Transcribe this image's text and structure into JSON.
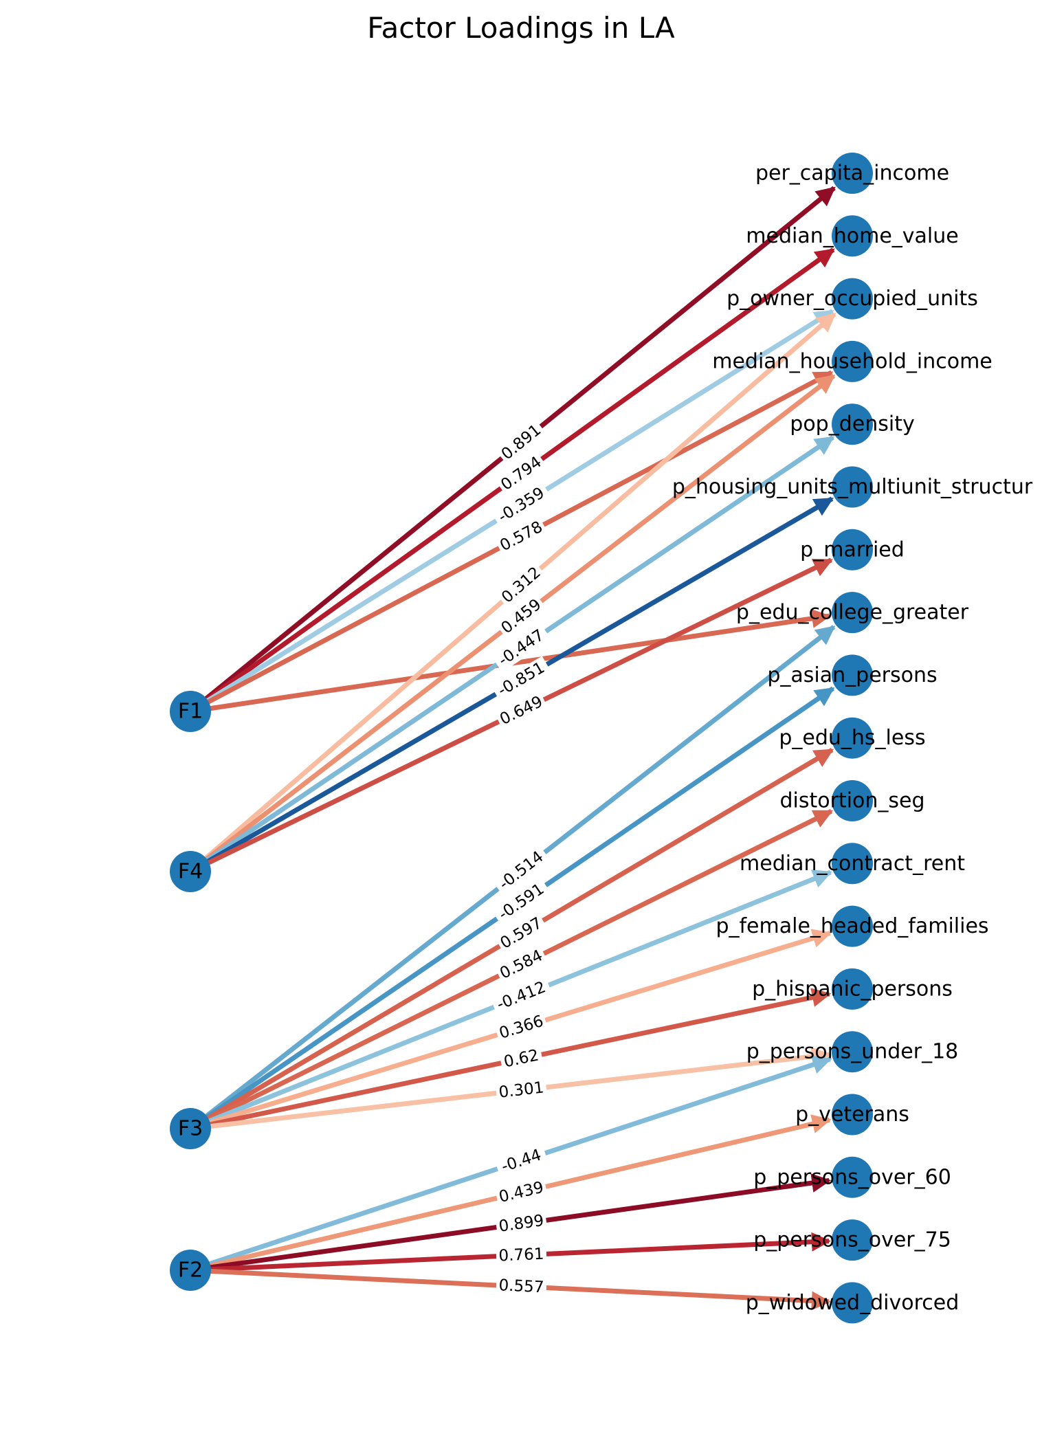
{
  "title": "Factor Loadings in LA",
  "factors": [
    "F1",
    "F4",
    "F3",
    "F2"
  ],
  "variables": [
    "per_capita_income",
    "median_home_value",
    "p_owner_occupied_units",
    "median_household_income",
    "pop_density",
    "p_housing_units_multiunit_structur",
    "p_married",
    "p_edu_college_greater",
    "p_asian_persons",
    "p_edu_hs_less",
    "distortion_seg",
    "median_contract_rent",
    "p_female_headed_families",
    "p_hispanic_persons",
    "p_persons_under_18",
    "p_veterans",
    "p_persons_over_60",
    "p_persons_over_75",
    "p_widowed_divorced"
  ],
  "edges": [
    {
      "from": "F1",
      "to": "per_capita_income",
      "loading": 0.891,
      "label": "0.891"
    },
    {
      "from": "F1",
      "to": "median_home_value",
      "loading": 0.794,
      "label": "0.794"
    },
    {
      "from": "F1",
      "to": "p_owner_occupied_units",
      "loading": -0.359,
      "label": "-0.359"
    },
    {
      "from": "F1",
      "to": "median_household_income",
      "loading": 0.578,
      "label": "0.578"
    },
    {
      "from": "F1",
      "to": "p_edu_college_greater",
      "loading": 0.578,
      "label": ""
    },
    {
      "from": "F4",
      "to": "p_owner_occupied_units",
      "loading": 0.312,
      "label": "0.312"
    },
    {
      "from": "F4",
      "to": "median_household_income",
      "loading": 0.459,
      "label": "0.459"
    },
    {
      "from": "F4",
      "to": "pop_density",
      "loading": -0.447,
      "label": "-0.447"
    },
    {
      "from": "F4",
      "to": "p_housing_units_multiunit_structur",
      "loading": -0.851,
      "label": "-0.851"
    },
    {
      "from": "F4",
      "to": "p_married",
      "loading": 0.649,
      "label": "0.649"
    },
    {
      "from": "F3",
      "to": "p_edu_college_greater",
      "loading": -0.514,
      "label": "-0.514"
    },
    {
      "from": "F3",
      "to": "p_asian_persons",
      "loading": -0.591,
      "label": "-0.591"
    },
    {
      "from": "F3",
      "to": "p_edu_hs_less",
      "loading": 0.597,
      "label": "0.597"
    },
    {
      "from": "F3",
      "to": "distortion_seg",
      "loading": 0.584,
      "label": "0.584"
    },
    {
      "from": "F3",
      "to": "median_contract_rent",
      "loading": -0.412,
      "label": "-0.412"
    },
    {
      "from": "F3",
      "to": "p_female_headed_families",
      "loading": 0.366,
      "label": "0.366"
    },
    {
      "from": "F3",
      "to": "p_hispanic_persons",
      "loading": 0.62,
      "label": "0.62"
    },
    {
      "from": "F3",
      "to": "p_persons_under_18",
      "loading": 0.301,
      "label": "0.301"
    },
    {
      "from": "F2",
      "to": "p_persons_under_18",
      "loading": -0.44,
      "label": "-0.44"
    },
    {
      "from": "F2",
      "to": "p_veterans",
      "loading": 0.439,
      "label": "0.439"
    },
    {
      "from": "F2",
      "to": "p_persons_over_60",
      "loading": 0.899,
      "label": "0.899"
    },
    {
      "from": "F2",
      "to": "p_persons_over_75",
      "loading": 0.761,
      "label": "0.761"
    },
    {
      "from": "F2",
      "to": "p_widowed_divorced",
      "loading": 0.557,
      "label": "0.557"
    }
  ],
  "colormap": "RdBu_r",
  "colors": {
    "node": "#1f77b4",
    "background": "#ffffff"
  }
}
